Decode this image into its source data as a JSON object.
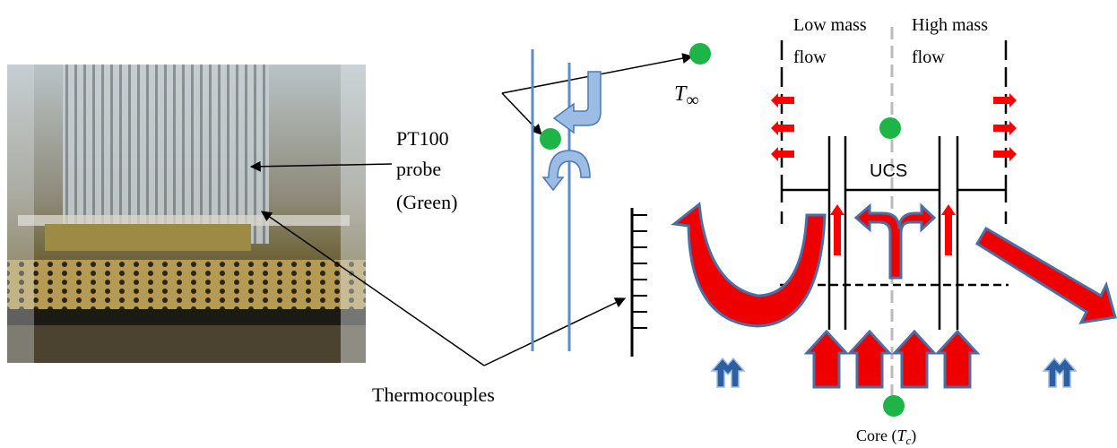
{
  "labels": {
    "pt100": [
      "PT100",
      "probe",
      "(Green)"
    ],
    "thermocouples": "Thermocouples",
    "t_inf": {
      "symbol": "T",
      "subscript": "∞"
    },
    "low_mass_flow": [
      "Low mass",
      "flow"
    ],
    "high_mass_flow": [
      "High mass",
      "flow"
    ],
    "ucs": "UCS",
    "core": {
      "text": "Core (",
      "symbol": "T",
      "subscript": "c",
      "close": ")"
    }
  }
}
